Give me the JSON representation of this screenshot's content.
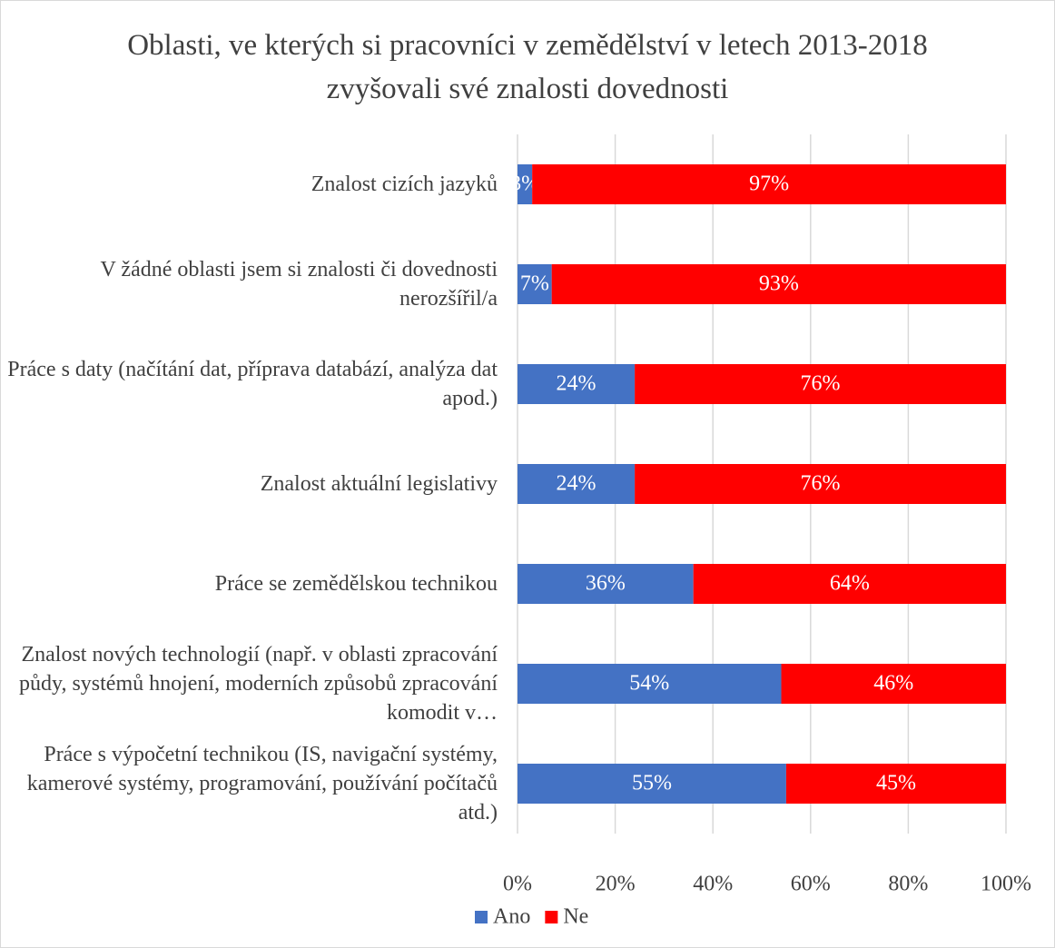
{
  "chart_data": {
    "type": "stacked_barh",
    "title": "Oblasti, ve kterých si pracovníci v zemědělství v letech 2013-2018 zvyšovali své znalosti dovednosti",
    "categories": [
      "Znalost cizích jazyků",
      "V žádné oblasti jsem si znalosti či dovednosti nerozšířil/a",
      "Práce s daty (načítání dat, příprava databází, analýza dat apod.)",
      "Znalost aktuální legislativy",
      "Práce se zemědělskou technikou",
      "Znalost nových technologií (např. v oblasti zpracování půdy, systémů hnojení, moderních způsobů zpracování komodit v…",
      "Práce s výpočetní technikou (IS, navigační systémy, kamerové systémy, programování, používání počítačů atd.)"
    ],
    "series": [
      {
        "name": "Ano",
        "color": "#4472c4",
        "values": [
          3,
          7,
          24,
          24,
          36,
          54,
          55
        ],
        "value_labels": [
          "3%",
          "7%",
          "24%",
          "24%",
          "36%",
          "54%",
          "55%"
        ]
      },
      {
        "name": "Ne",
        "color": "#ff0000",
        "values": [
          97,
          93,
          76,
          76,
          64,
          46,
          45
        ],
        "value_labels": [
          "97%",
          "93%",
          "76%",
          "76%",
          "64%",
          "46%",
          "45%"
        ]
      }
    ],
    "xlim": [
      0,
      100
    ],
    "xticks": [
      {
        "value": 0,
        "label": "0%"
      },
      {
        "value": 20,
        "label": "20%"
      },
      {
        "value": 40,
        "label": "40%"
      },
      {
        "value": 60,
        "label": "60%"
      },
      {
        "value": 80,
        "label": "80%"
      },
      {
        "value": 100,
        "label": "100%"
      }
    ],
    "grid": true,
    "legend": "bottom"
  }
}
